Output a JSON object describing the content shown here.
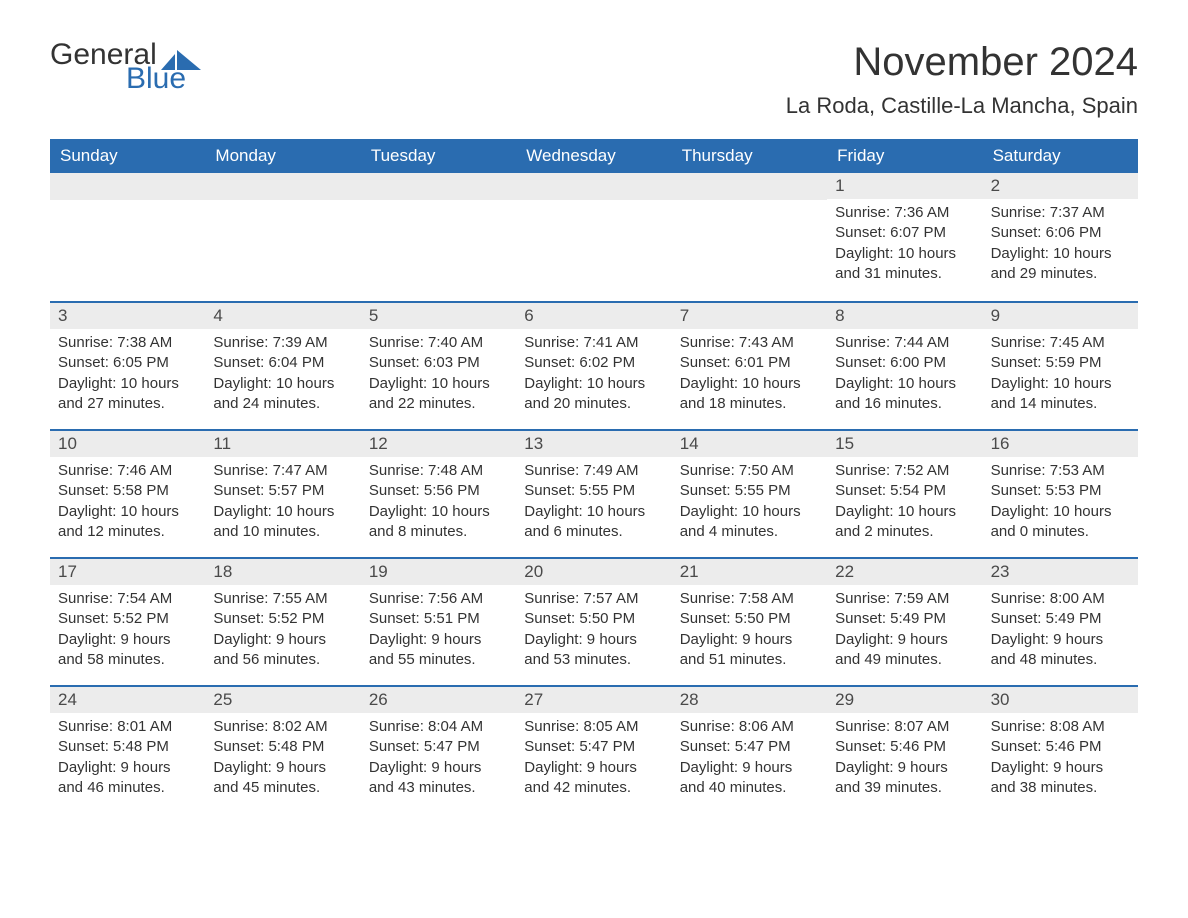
{
  "logo": {
    "line1": "General",
    "line2": "Blue",
    "text_color": "#333333",
    "blue_color": "#2a6cb0"
  },
  "title": "November 2024",
  "location": "La Roda, Castille-La Mancha, Spain",
  "colors": {
    "header_bg": "#2a6cb0",
    "header_text": "#ffffff",
    "daynum_bg": "#ececec",
    "daynum_text": "#4a4a4a",
    "body_text": "#333333",
    "row_border": "#2a6cb0",
    "page_bg": "#ffffff"
  },
  "typography": {
    "title_fontsize": 40,
    "location_fontsize": 22,
    "dayheader_fontsize": 17,
    "daynum_fontsize": 17,
    "body_fontsize": 15,
    "font_family": "Arial"
  },
  "day_headers": [
    "Sunday",
    "Monday",
    "Tuesday",
    "Wednesday",
    "Thursday",
    "Friday",
    "Saturday"
  ],
  "weeks": [
    [
      null,
      null,
      null,
      null,
      null,
      {
        "num": "1",
        "sunrise": "Sunrise: 7:36 AM",
        "sunset": "Sunset: 6:07 PM",
        "dl1": "Daylight: 10 hours",
        "dl2": "and 31 minutes."
      },
      {
        "num": "2",
        "sunrise": "Sunrise: 7:37 AM",
        "sunset": "Sunset: 6:06 PM",
        "dl1": "Daylight: 10 hours",
        "dl2": "and 29 minutes."
      }
    ],
    [
      {
        "num": "3",
        "sunrise": "Sunrise: 7:38 AM",
        "sunset": "Sunset: 6:05 PM",
        "dl1": "Daylight: 10 hours",
        "dl2": "and 27 minutes."
      },
      {
        "num": "4",
        "sunrise": "Sunrise: 7:39 AM",
        "sunset": "Sunset: 6:04 PM",
        "dl1": "Daylight: 10 hours",
        "dl2": "and 24 minutes."
      },
      {
        "num": "5",
        "sunrise": "Sunrise: 7:40 AM",
        "sunset": "Sunset: 6:03 PM",
        "dl1": "Daylight: 10 hours",
        "dl2": "and 22 minutes."
      },
      {
        "num": "6",
        "sunrise": "Sunrise: 7:41 AM",
        "sunset": "Sunset: 6:02 PM",
        "dl1": "Daylight: 10 hours",
        "dl2": "and 20 minutes."
      },
      {
        "num": "7",
        "sunrise": "Sunrise: 7:43 AM",
        "sunset": "Sunset: 6:01 PM",
        "dl1": "Daylight: 10 hours",
        "dl2": "and 18 minutes."
      },
      {
        "num": "8",
        "sunrise": "Sunrise: 7:44 AM",
        "sunset": "Sunset: 6:00 PM",
        "dl1": "Daylight: 10 hours",
        "dl2": "and 16 minutes."
      },
      {
        "num": "9",
        "sunrise": "Sunrise: 7:45 AM",
        "sunset": "Sunset: 5:59 PM",
        "dl1": "Daylight: 10 hours",
        "dl2": "and 14 minutes."
      }
    ],
    [
      {
        "num": "10",
        "sunrise": "Sunrise: 7:46 AM",
        "sunset": "Sunset: 5:58 PM",
        "dl1": "Daylight: 10 hours",
        "dl2": "and 12 minutes."
      },
      {
        "num": "11",
        "sunrise": "Sunrise: 7:47 AM",
        "sunset": "Sunset: 5:57 PM",
        "dl1": "Daylight: 10 hours",
        "dl2": "and 10 minutes."
      },
      {
        "num": "12",
        "sunrise": "Sunrise: 7:48 AM",
        "sunset": "Sunset: 5:56 PM",
        "dl1": "Daylight: 10 hours",
        "dl2": "and 8 minutes."
      },
      {
        "num": "13",
        "sunrise": "Sunrise: 7:49 AM",
        "sunset": "Sunset: 5:55 PM",
        "dl1": "Daylight: 10 hours",
        "dl2": "and 6 minutes."
      },
      {
        "num": "14",
        "sunrise": "Sunrise: 7:50 AM",
        "sunset": "Sunset: 5:55 PM",
        "dl1": "Daylight: 10 hours",
        "dl2": "and 4 minutes."
      },
      {
        "num": "15",
        "sunrise": "Sunrise: 7:52 AM",
        "sunset": "Sunset: 5:54 PM",
        "dl1": "Daylight: 10 hours",
        "dl2": "and 2 minutes."
      },
      {
        "num": "16",
        "sunrise": "Sunrise: 7:53 AM",
        "sunset": "Sunset: 5:53 PM",
        "dl1": "Daylight: 10 hours",
        "dl2": "and 0 minutes."
      }
    ],
    [
      {
        "num": "17",
        "sunrise": "Sunrise: 7:54 AM",
        "sunset": "Sunset: 5:52 PM",
        "dl1": "Daylight: 9 hours",
        "dl2": "and 58 minutes."
      },
      {
        "num": "18",
        "sunrise": "Sunrise: 7:55 AM",
        "sunset": "Sunset: 5:52 PM",
        "dl1": "Daylight: 9 hours",
        "dl2": "and 56 minutes."
      },
      {
        "num": "19",
        "sunrise": "Sunrise: 7:56 AM",
        "sunset": "Sunset: 5:51 PM",
        "dl1": "Daylight: 9 hours",
        "dl2": "and 55 minutes."
      },
      {
        "num": "20",
        "sunrise": "Sunrise: 7:57 AM",
        "sunset": "Sunset: 5:50 PM",
        "dl1": "Daylight: 9 hours",
        "dl2": "and 53 minutes."
      },
      {
        "num": "21",
        "sunrise": "Sunrise: 7:58 AM",
        "sunset": "Sunset: 5:50 PM",
        "dl1": "Daylight: 9 hours",
        "dl2": "and 51 minutes."
      },
      {
        "num": "22",
        "sunrise": "Sunrise: 7:59 AM",
        "sunset": "Sunset: 5:49 PM",
        "dl1": "Daylight: 9 hours",
        "dl2": "and 49 minutes."
      },
      {
        "num": "23",
        "sunrise": "Sunrise: 8:00 AM",
        "sunset": "Sunset: 5:49 PM",
        "dl1": "Daylight: 9 hours",
        "dl2": "and 48 minutes."
      }
    ],
    [
      {
        "num": "24",
        "sunrise": "Sunrise: 8:01 AM",
        "sunset": "Sunset: 5:48 PM",
        "dl1": "Daylight: 9 hours",
        "dl2": "and 46 minutes."
      },
      {
        "num": "25",
        "sunrise": "Sunrise: 8:02 AM",
        "sunset": "Sunset: 5:48 PM",
        "dl1": "Daylight: 9 hours",
        "dl2": "and 45 minutes."
      },
      {
        "num": "26",
        "sunrise": "Sunrise: 8:04 AM",
        "sunset": "Sunset: 5:47 PM",
        "dl1": "Daylight: 9 hours",
        "dl2": "and 43 minutes."
      },
      {
        "num": "27",
        "sunrise": "Sunrise: 8:05 AM",
        "sunset": "Sunset: 5:47 PM",
        "dl1": "Daylight: 9 hours",
        "dl2": "and 42 minutes."
      },
      {
        "num": "28",
        "sunrise": "Sunrise: 8:06 AM",
        "sunset": "Sunset: 5:47 PM",
        "dl1": "Daylight: 9 hours",
        "dl2": "and 40 minutes."
      },
      {
        "num": "29",
        "sunrise": "Sunrise: 8:07 AM",
        "sunset": "Sunset: 5:46 PM",
        "dl1": "Daylight: 9 hours",
        "dl2": "and 39 minutes."
      },
      {
        "num": "30",
        "sunrise": "Sunrise: 8:08 AM",
        "sunset": "Sunset: 5:46 PM",
        "dl1": "Daylight: 9 hours",
        "dl2": "and 38 minutes."
      }
    ]
  ]
}
